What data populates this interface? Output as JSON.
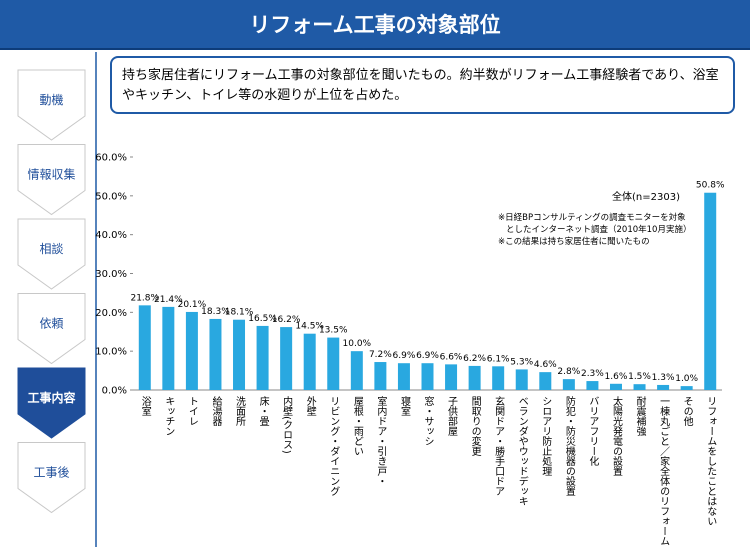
{
  "header": {
    "title": "リフォーム工事の対象部位"
  },
  "sidebar": {
    "steps": [
      "動機",
      "情報収集",
      "相談",
      "依頼",
      "工事内容",
      "工事後"
    ]
  },
  "description": "持ち家居住者にリフォーム工事の対象部位を聞いたもの。約半数がリフォーム工事経験者であり、浴室やキッチン、トイレ等の水廻りが上位を占めた。",
  "chart_data": {
    "type": "bar",
    "annotations": [
      "全体(n=2303)",
      "※日経BPコンサルティングの調査モニターを対象",
      "としたインターネット調査（2010年10月実施）",
      "※この結果は持ち家居住者に聞いたもの"
    ],
    "categories": [
      "浴室",
      "キッチン",
      "トイレ",
      "給湯器",
      "洗面所",
      "床・畳",
      "内壁(クロス)",
      "外壁",
      "リビング・ダイニング",
      "屋根・雨どい",
      "室内ドア・引き戸・",
      "寝室",
      "窓・サッシ",
      "子供部屋",
      "間取りの変更",
      "玄関ドア・勝手口ドア",
      "ベランダやウッドデッキ",
      "シロアリ防止処理",
      "防犯・防災機器の設置",
      "バリアフリー化",
      "太陽光発電の設置",
      "耐震補強",
      "一棟丸ごと／家全体のリフォーム",
      "その他",
      "リフォームをしたことはない"
    ],
    "values": [
      21.8,
      21.4,
      20.1,
      18.3,
      18.1,
      16.5,
      16.2,
      14.5,
      13.5,
      10.0,
      7.2,
      6.9,
      6.9,
      6.6,
      6.2,
      6.1,
      5.3,
      4.6,
      2.8,
      2.3,
      1.6,
      1.5,
      1.3,
      1.0,
      50.8
    ],
    "value_labels": [
      "21.8%",
      "21.4%",
      "20.1%",
      "18.3%",
      "18.1%",
      "16.5%",
      "16.2%",
      "14.5%",
      "13.5%",
      "10.0%",
      "7.2%",
      "6.9%",
      "6.9%",
      "6.6%",
      "6.2%",
      "6.1%",
      "5.3%",
      "4.6%",
      "2.8%",
      "2.3%",
      "1.6%",
      "1.5%",
      "1.3%",
      "1.0%",
      "50.8%"
    ],
    "color": "#29a8e0",
    "ylim": [
      0,
      60
    ],
    "yticks": [
      {
        "value": 0,
        "label": "0.0%"
      },
      {
        "value": 10,
        "label": "10.0%"
      },
      {
        "value": 20,
        "label": "20.0%"
      },
      {
        "value": 30,
        "label": "30.0%"
      },
      {
        "value": 40,
        "label": "40.0%"
      },
      {
        "value": 50,
        "label": "50.0%"
      },
      {
        "value": 60,
        "label": "60.0%"
      }
    ]
  }
}
